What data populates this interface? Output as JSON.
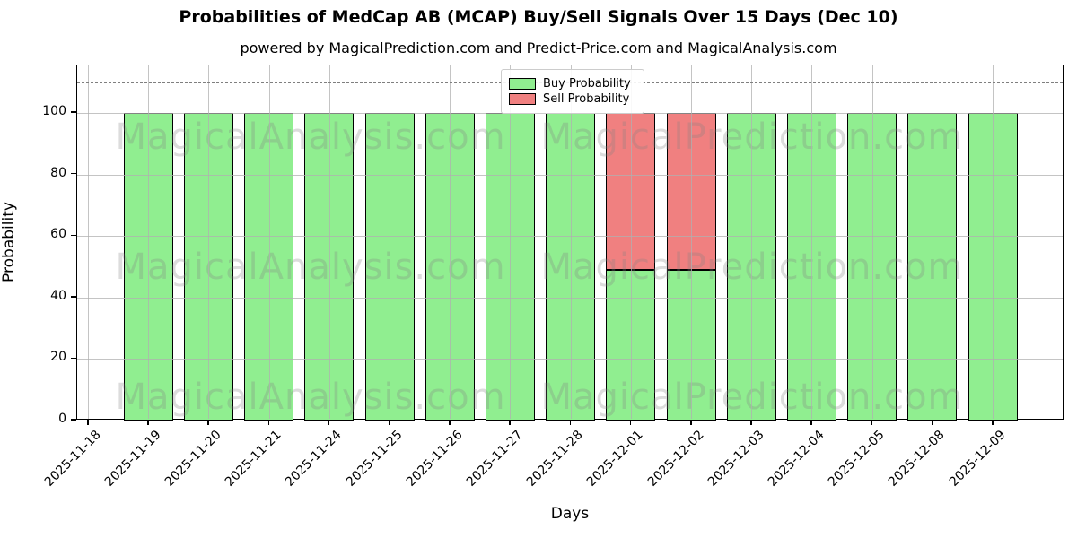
{
  "title": "Probabilities of MedCap AB (MCAP) Buy/Sell Signals Over 15 Days (Dec 10)",
  "subtitle": "powered by MagicalPrediction.com and Predict-Price.com and MagicalAnalysis.com",
  "watermarks": [
    "MagicalAnalysis.com",
    "MagicalPrediction.com"
  ],
  "legend": {
    "position": "top-center",
    "items": [
      {
        "label": "Buy Probability",
        "color": "#90EE90"
      },
      {
        "label": "Sell Probability",
        "color": "#F08080"
      }
    ]
  },
  "chart_data": {
    "type": "bar",
    "stacked": true,
    "title": "Probabilities of MedCap AB (MCAP) Buy/Sell Signals Over 15 Days (Dec 10)",
    "subtitle": "powered by MagicalPrediction.com and Predict-Price.com and MagicalAnalysis.com",
    "xlabel": "Days",
    "ylabel": "Probability",
    "categories": [
      "2025-11-18",
      "2025-11-19",
      "2025-11-20",
      "2025-11-21",
      "2025-11-24",
      "2025-11-25",
      "2025-11-26",
      "2025-11-27",
      "2025-11-28",
      "2025-12-01",
      "2025-12-02",
      "2025-12-03",
      "2025-12-04",
      "2025-12-05",
      "2025-12-08",
      "2025-12-09"
    ],
    "series": [
      {
        "name": "Buy Probability",
        "color": "#90EE90",
        "values": [
          0,
          100,
          100,
          100,
          100,
          100,
          100,
          100,
          100,
          49,
          49,
          100,
          100,
          100,
          100,
          100
        ]
      },
      {
        "name": "Sell Probability",
        "color": "#F08080",
        "values": [
          0,
          0,
          0,
          0,
          0,
          0,
          0,
          0,
          0,
          51,
          51,
          0,
          0,
          0,
          0,
          0
        ]
      }
    ],
    "yticks": [
      0,
      20,
      40,
      60,
      80,
      100
    ],
    "ylim": [
      0,
      115.5
    ],
    "dashed_threshold_y": 110,
    "grid": true,
    "bar_edge_color": "#000000",
    "grid_color": "#b0b0b0",
    "dashed_line_color": "#7f7f7f"
  }
}
